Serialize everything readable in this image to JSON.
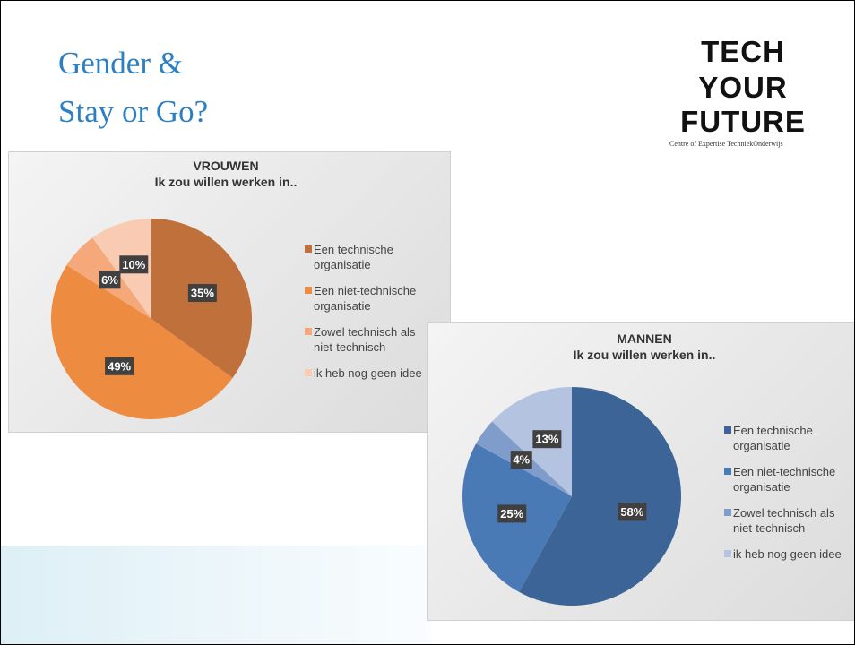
{
  "slide": {
    "title_lines": [
      "Gender &",
      "Stay or Go?"
    ],
    "logo": {
      "lines": [
        "TECH",
        "YOUR",
        "FUTURE"
      ],
      "tagline": "Centre of Expertise TechniekOnderwijs"
    }
  },
  "chart_data": [
    {
      "type": "pie",
      "title": "VROUWEN",
      "subtitle": "Ik zou willen werken in..",
      "categories": [
        "Een technische organisatie",
        "Een niet-technische organisatie",
        "Zowel technisch als niet-technisch",
        "ik heb nog geen idee"
      ],
      "values": [
        35,
        49,
        6,
        10
      ],
      "value_labels": [
        "35%",
        "49%",
        "6%",
        "10%"
      ],
      "colors": [
        "#c0703a",
        "#ed8b40",
        "#f5a87a",
        "#f8cbb2"
      ],
      "legend": "right"
    },
    {
      "type": "pie",
      "title": "MANNEN",
      "subtitle": "Ik zou willen werken in..",
      "categories": [
        "Een technische organisatie",
        "Een niet-technische organisatie",
        "Zowel technisch als niet-technisch",
        "ik heb nog geen idee"
      ],
      "values": [
        58,
        25,
        4,
        13
      ],
      "value_labels": [
        "58%",
        "25%",
        "4%",
        "13%"
      ],
      "colors": [
        "#3d6496",
        "#4a7ab6",
        "#7f9ccb",
        "#b4c3e0"
      ],
      "legend": "right"
    }
  ]
}
